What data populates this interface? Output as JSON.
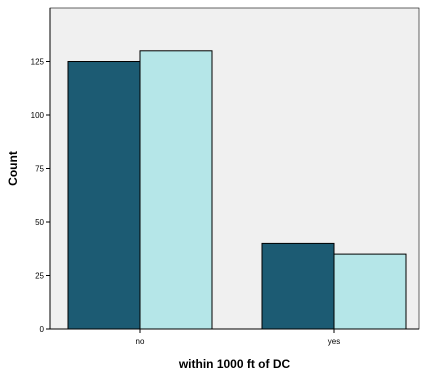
{
  "chart_data": {
    "type": "bar",
    "title": "",
    "xlabel": "within 1000 ft of DC",
    "ylabel": "Count",
    "categories": [
      "no",
      "yes"
    ],
    "series": [
      {
        "values": [
          125,
          40
        ],
        "color": "#1c5b73"
      },
      {
        "values": [
          130,
          35
        ],
        "color": "#b5e6e8"
      }
    ],
    "ylim": [
      0,
      150
    ],
    "yticks": [
      0,
      25,
      50,
      75,
      100,
      125
    ],
    "plot_background": "#f0f0f0",
    "bar_border_color": "#000000",
    "grid": false,
    "legend": "none"
  }
}
